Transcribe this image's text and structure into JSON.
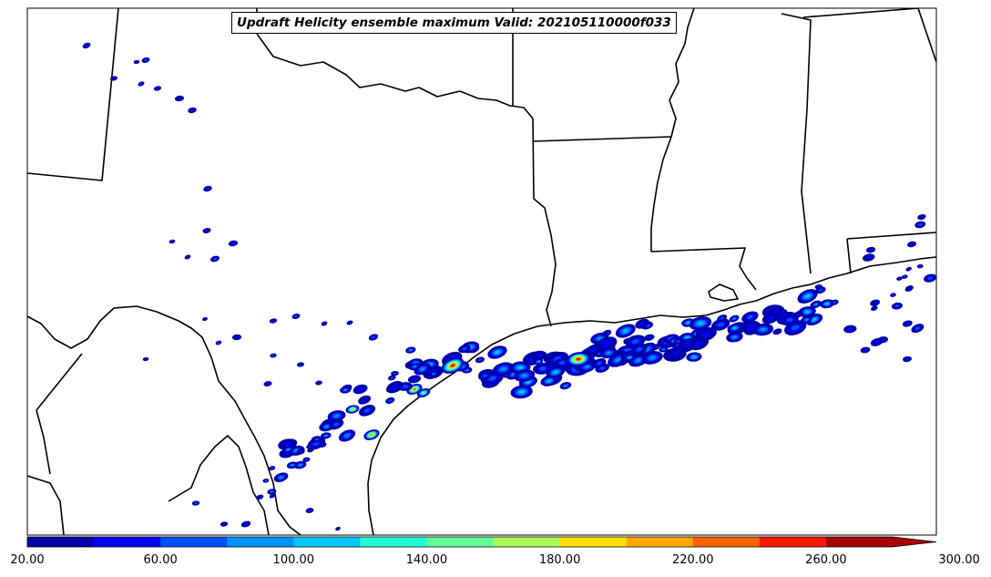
{
  "title": "Updraft Helicity ensemble maximum Valid: 202105110000f033",
  "colorbar": {
    "tick_labels": [
      "20.00",
      "60.00",
      "100.00",
      "140.00",
      "180.00",
      "220.00",
      "260.00",
      "300.00"
    ],
    "colors": [
      "#0000a8",
      "#0000ff",
      "#0050ff",
      "#0090ff",
      "#00c8ff",
      "#20ffd8",
      "#60ff98",
      "#a8ff58",
      "#ffe000",
      "#ffa800",
      "#ff6000",
      "#ff1800",
      "#a80000"
    ],
    "extend": "max"
  },
  "layers": {
    "coastline": "coastline",
    "state_borders": "state-borders",
    "country_border": "country-border"
  }
}
